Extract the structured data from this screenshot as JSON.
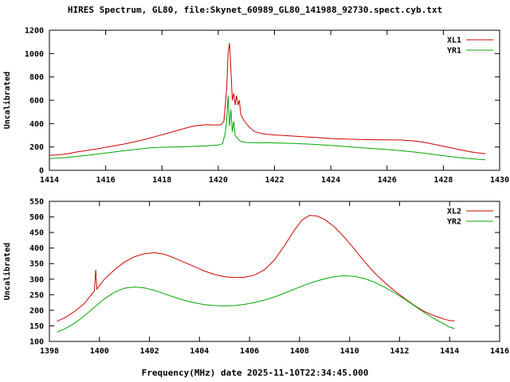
{
  "title": "HIRES Spectrum, GL80, file:Skynet_60989_GL80_141988_92730.spect.cyb.txt",
  "xlabel": "Frequency(MHz) date 2025-11-10T22:34:45.000",
  "colors": {
    "red": "#d00000",
    "green": "#00a800",
    "axis": "#000000",
    "background": "#ffffff"
  },
  "chart_data": [
    {
      "type": "line",
      "title": "",
      "xlabel": "",
      "ylabel": "Uncalibrated",
      "xlim": [
        1414,
        1430
      ],
      "ylim": [
        0,
        1200
      ],
      "xticks": [
        1414,
        1416,
        1418,
        1420,
        1422,
        1424,
        1426,
        1428,
        1430
      ],
      "yticks": [
        0,
        200,
        400,
        600,
        800,
        1000,
        1200
      ],
      "grid": false,
      "legend_position": "top-right",
      "legend": [
        {
          "name": "XL1",
          "color": "#d00000"
        },
        {
          "name": "YR1",
          "color": "#00a800"
        }
      ],
      "series": [
        {
          "name": "XL1",
          "color": "#d00000",
          "points": [
            [
              1414.0,
              128
            ],
            [
              1414.3,
              132
            ],
            [
              1414.6,
              140
            ],
            [
              1415.0,
              158
            ],
            [
              1415.4,
              172
            ],
            [
              1415.8,
              188
            ],
            [
              1416.2,
              205
            ],
            [
              1416.6,
              222
            ],
            [
              1417.0,
              243
            ],
            [
              1417.4,
              265
            ],
            [
              1417.8,
              292
            ],
            [
              1418.2,
              318
            ],
            [
              1418.6,
              345
            ],
            [
              1419.0,
              372
            ],
            [
              1419.3,
              385
            ],
            [
              1419.6,
              390
            ],
            [
              1419.9,
              388
            ],
            [
              1420.1,
              390
            ],
            [
              1420.2,
              420
            ],
            [
              1420.25,
              560
            ],
            [
              1420.3,
              700
            ],
            [
              1420.35,
              1000
            ],
            [
              1420.4,
              1090
            ],
            [
              1420.45,
              860
            ],
            [
              1420.5,
              600
            ],
            [
              1420.55,
              660
            ],
            [
              1420.6,
              560
            ],
            [
              1420.65,
              640
            ],
            [
              1420.7,
              560
            ],
            [
              1420.75,
              600
            ],
            [
              1420.8,
              480
            ],
            [
              1420.9,
              430
            ],
            [
              1421.0,
              400
            ],
            [
              1421.1,
              370
            ],
            [
              1421.3,
              330
            ],
            [
              1421.6,
              312
            ],
            [
              1422.0,
              303
            ],
            [
              1422.5,
              296
            ],
            [
              1423.0,
              288
            ],
            [
              1423.5,
              281
            ],
            [
              1424.0,
              272
            ],
            [
              1424.5,
              267
            ],
            [
              1425.0,
              264
            ],
            [
              1425.5,
              262
            ],
            [
              1426.0,
              261
            ],
            [
              1426.5,
              260
            ],
            [
              1427.0,
              250
            ],
            [
              1427.4,
              236
            ],
            [
              1427.8,
              216
            ],
            [
              1428.2,
              196
            ],
            [
              1428.6,
              175
            ],
            [
              1429.0,
              157
            ],
            [
              1429.3,
              147
            ],
            [
              1429.5,
              142
            ]
          ]
        },
        {
          "name": "YR1",
          "color": "#00a800",
          "points": [
            [
              1414.0,
              100
            ],
            [
              1414.4,
              106
            ],
            [
              1414.8,
              114
            ],
            [
              1415.2,
              124
            ],
            [
              1415.6,
              136
            ],
            [
              1416.0,
              148
            ],
            [
              1416.4,
              160
            ],
            [
              1416.8,
              172
            ],
            [
              1417.2,
              182
            ],
            [
              1417.6,
              192
            ],
            [
              1418.0,
              198
            ],
            [
              1418.4,
              200
            ],
            [
              1418.8,
              202
            ],
            [
              1419.2,
              206
            ],
            [
              1419.6,
              210
            ],
            [
              1420.0,
              216
            ],
            [
              1420.15,
              228
            ],
            [
              1420.25,
              320
            ],
            [
              1420.3,
              430
            ],
            [
              1420.35,
              640
            ],
            [
              1420.4,
              380
            ],
            [
              1420.45,
              520
            ],
            [
              1420.5,
              330
            ],
            [
              1420.55,
              420
            ],
            [
              1420.6,
              300
            ],
            [
              1420.7,
              268
            ],
            [
              1420.8,
              248
            ],
            [
              1421.0,
              238
            ],
            [
              1421.4,
              236
            ],
            [
              1421.8,
              236
            ],
            [
              1422.2,
              234
            ],
            [
              1422.6,
              231
            ],
            [
              1423.0,
              227
            ],
            [
              1423.4,
              222
            ],
            [
              1423.8,
              216
            ],
            [
              1424.2,
              209
            ],
            [
              1424.6,
              202
            ],
            [
              1425.0,
              195
            ],
            [
              1425.5,
              187
            ],
            [
              1426.0,
              178
            ],
            [
              1426.5,
              168
            ],
            [
              1427.0,
              156
            ],
            [
              1427.4,
              144
            ],
            [
              1427.8,
              131
            ],
            [
              1428.2,
              119
            ],
            [
              1428.6,
              108
            ],
            [
              1429.0,
              99
            ],
            [
              1429.3,
              93
            ],
            [
              1429.5,
              90
            ]
          ]
        }
      ]
    },
    {
      "type": "line",
      "title": "",
      "xlabel": "Frequency(MHz) date 2025-11-10T22:34:45.000",
      "ylabel": "Uncalibrated",
      "xlim": [
        1398,
        1416
      ],
      "ylim": [
        100,
        550
      ],
      "xticks": [
        1398,
        1400,
        1402,
        1404,
        1406,
        1408,
        1410,
        1412,
        1414,
        1416
      ],
      "yticks": [
        100,
        150,
        200,
        250,
        300,
        350,
        400,
        450,
        500,
        550
      ],
      "grid": false,
      "legend_position": "top-right",
      "legend": [
        {
          "name": "XL2",
          "color": "#d00000"
        },
        {
          "name": "YR2",
          "color": "#00a800"
        }
      ],
      "series": [
        {
          "name": "XL2",
          "color": "#d00000",
          "points": [
            [
              1398.3,
              165
            ],
            [
              1398.6,
              175
            ],
            [
              1399.0,
              196
            ],
            [
              1399.4,
              222
            ],
            [
              1399.8,
              262
            ],
            [
              1399.85,
              330
            ],
            [
              1399.9,
              268
            ],
            [
              1400.2,
              300
            ],
            [
              1400.6,
              330
            ],
            [
              1401.0,
              355
            ],
            [
              1401.4,
              372
            ],
            [
              1401.8,
              382
            ],
            [
              1402.2,
              385
            ],
            [
              1402.6,
              380
            ],
            [
              1403.0,
              368
            ],
            [
              1403.4,
              354
            ],
            [
              1403.8,
              340
            ],
            [
              1404.2,
              326
            ],
            [
              1404.6,
              315
            ],
            [
              1405.0,
              308
            ],
            [
              1405.4,
              305
            ],
            [
              1405.8,
              306
            ],
            [
              1406.2,
              313
            ],
            [
              1406.6,
              330
            ],
            [
              1407.0,
              362
            ],
            [
              1407.4,
              408
            ],
            [
              1407.8,
              458
            ],
            [
              1408.1,
              490
            ],
            [
              1408.4,
              505
            ],
            [
              1408.7,
              503
            ],
            [
              1409.0,
              492
            ],
            [
              1409.4,
              468
            ],
            [
              1409.8,
              434
            ],
            [
              1410.2,
              396
            ],
            [
              1410.6,
              356
            ],
            [
              1411.0,
              320
            ],
            [
              1411.4,
              290
            ],
            [
              1411.8,
              262
            ],
            [
              1412.2,
              238
            ],
            [
              1412.6,
              215
            ],
            [
              1413.0,
              196
            ],
            [
              1413.4,
              182
            ],
            [
              1413.8,
              171
            ],
            [
              1414.0,
              167
            ],
            [
              1414.2,
              166
            ]
          ]
        },
        {
          "name": "YR2",
          "color": "#00a800",
          "points": [
            [
              1398.3,
              130
            ],
            [
              1398.6,
              140
            ],
            [
              1399.0,
              158
            ],
            [
              1399.4,
              182
            ],
            [
              1399.8,
              210
            ],
            [
              1400.2,
              237
            ],
            [
              1400.6,
              258
            ],
            [
              1401.0,
              271
            ],
            [
              1401.4,
              275
            ],
            [
              1401.8,
              272
            ],
            [
              1402.2,
              264
            ],
            [
              1402.6,
              253
            ],
            [
              1403.0,
              242
            ],
            [
              1403.4,
              232
            ],
            [
              1403.8,
              224
            ],
            [
              1404.2,
              218
            ],
            [
              1404.6,
              215
            ],
            [
              1405.0,
              214
            ],
            [
              1405.4,
              215
            ],
            [
              1405.8,
              219
            ],
            [
              1406.2,
              225
            ],
            [
              1406.6,
              233
            ],
            [
              1407.0,
              243
            ],
            [
              1407.4,
              255
            ],
            [
              1407.8,
              268
            ],
            [
              1408.2,
              281
            ],
            [
              1408.6,
              292
            ],
            [
              1409.0,
              301
            ],
            [
              1409.4,
              308
            ],
            [
              1409.8,
              311
            ],
            [
              1410.2,
              309
            ],
            [
              1410.6,
              302
            ],
            [
              1411.0,
              290
            ],
            [
              1411.4,
              274
            ],
            [
              1411.8,
              256
            ],
            [
              1412.2,
              236
            ],
            [
              1412.6,
              214
            ],
            [
              1413.0,
              192
            ],
            [
              1413.4,
              172
            ],
            [
              1413.8,
              155
            ],
            [
              1414.0,
              146
            ],
            [
              1414.2,
              141
            ]
          ]
        }
      ]
    }
  ]
}
